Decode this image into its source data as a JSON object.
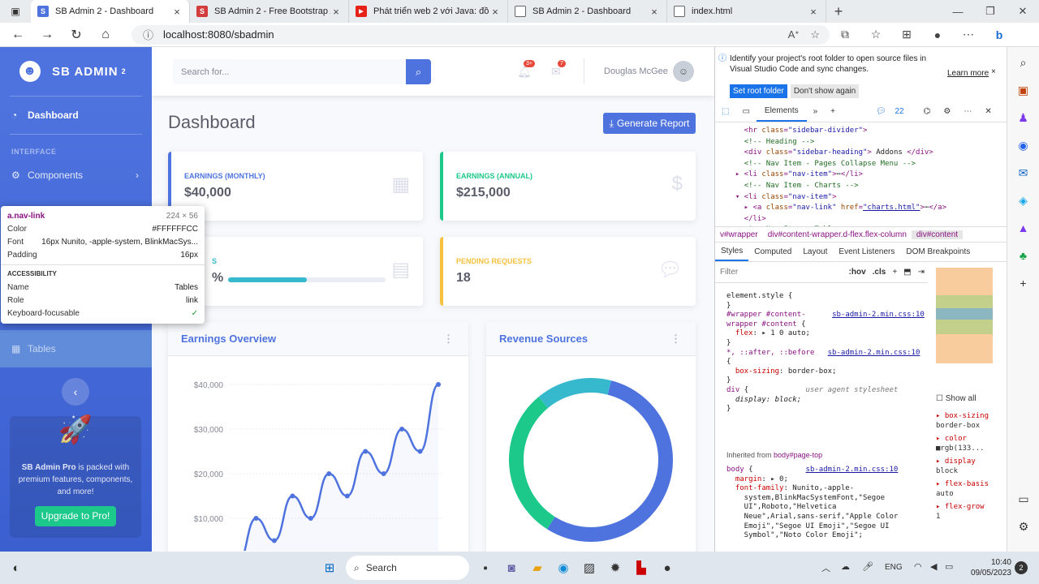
{
  "browser": {
    "tabs": [
      {
        "title": "SB Admin 2 - Dashboard",
        "fav": "S",
        "fav_color": "#4e73df"
      },
      {
        "title": "SB Admin 2 - Free Bootstrap Adm",
        "fav": "S",
        "fav_color": "#d23c3c"
      },
      {
        "title": "Phát triển web 2 với Java: đồ án",
        "fav": "▶",
        "fav_color": "#e62117"
      },
      {
        "title": "SB Admin 2 - Dashboard",
        "fav": "▭",
        "fav_color": "#888888"
      },
      {
        "title": "index.html",
        "fav": "▭",
        "fav_color": "#888888"
      }
    ],
    "url": "localhost:8080/sbadmin"
  },
  "sidebar": {
    "brand": "SB ADMIN",
    "brand_sup": "2",
    "dashboard": "Dashboard",
    "heading": "INTERFACE",
    "components": "Components",
    "tables": "Tables",
    "promo_text": "SB Admin Pro is packed with premium features, components, and more!",
    "promo_pre": "SB Admin Pro",
    "promo_post": " is packed with premium features, components, and more!",
    "promo_button": "Upgrade to Pro!"
  },
  "topbar": {
    "search_placeholder": "Search for...",
    "alerts_badge": "3+",
    "messages_badge": "7",
    "user_name": "Douglas McGee"
  },
  "page": {
    "title": "Dashboard",
    "report_button": "Generate Report"
  },
  "cards": {
    "earnings_monthly_label": "EARNINGS (MONTHLY)",
    "earnings_monthly_value": "$40,000",
    "earnings_annual_label": "EARNINGS (ANNUAL)",
    "earnings_annual_value": "$215,000",
    "tasks_label_visible": "S",
    "tasks_value_visible": "%",
    "tasks_progress": 0.5,
    "pending_label": "PENDING REQUESTS",
    "pending_value": "18"
  },
  "earnings_overview": {
    "title": "Earnings Overview",
    "y_ticks": [
      "$40,000",
      "$30,000",
      "$20,000",
      "$10,000"
    ]
  },
  "revenue": {
    "title": "Revenue Sources"
  },
  "chart_data": [
    {
      "type": "line",
      "title": "Earnings Overview",
      "ylim": [
        0,
        40000
      ],
      "y_ticks": [
        10000,
        20000,
        30000,
        40000
      ],
      "values": [
        0,
        10000,
        5000,
        15000,
        10000,
        20000,
        15000,
        25000,
        20000,
        30000,
        25000,
        40000
      ],
      "color": "#4e73df"
    },
    {
      "type": "pie",
      "title": "Revenue Sources",
      "values": [
        55,
        30,
        15
      ],
      "colors": [
        "#4e73df",
        "#1cc88a",
        "#36b9cc"
      ]
    }
  ],
  "tooltip": {
    "selector": "a.nav-link",
    "size": "224 × 56",
    "color_label": "Color",
    "color_value": "#FFFFFFCC",
    "font_label": "Font",
    "font_value": "16px Nunito, -apple-system, BlinkMacSys...",
    "padding_label": "Padding",
    "padding_value": "16px",
    "accessibility": "ACCESSIBILITY",
    "name_label": "Name",
    "name_value": "Tables",
    "role_label": "Role",
    "role_value": "link",
    "kbd_label": "Keyboard-focusable"
  },
  "devtools": {
    "info_line1": "Identify your project's root folder to open source files in",
    "info_line2": "Visual Studio Code and sync changes.",
    "learn_more": "Learn more",
    "set_root": "Set root folder",
    "dont_show": "Don't show again",
    "elements_tab": "Elements",
    "issues_count": "22",
    "crumbs": [
      "v#wrapper",
      "div#content-wrapper.d-flex.flex-column",
      "div#content"
    ],
    "subtabs": [
      "Styles",
      "Computed",
      "Layout",
      "Event Listeners",
      "DOM Breakpoints"
    ],
    "filter": "Filter",
    "hov": ":hov",
    "cls": ".cls",
    "show_all": "Show all",
    "inherited_from": "Inherited from",
    "inherited_node": "body#page-top"
  },
  "taskbar": {
    "search": "Search",
    "lang": "ENG",
    "time": "10:40",
    "date": "09/05/2023",
    "notif": "2"
  },
  "colors": {
    "primary": "#4e73df",
    "success": "#1cc88a",
    "info": "#36b9cc",
    "warning": "#f6c23e"
  }
}
